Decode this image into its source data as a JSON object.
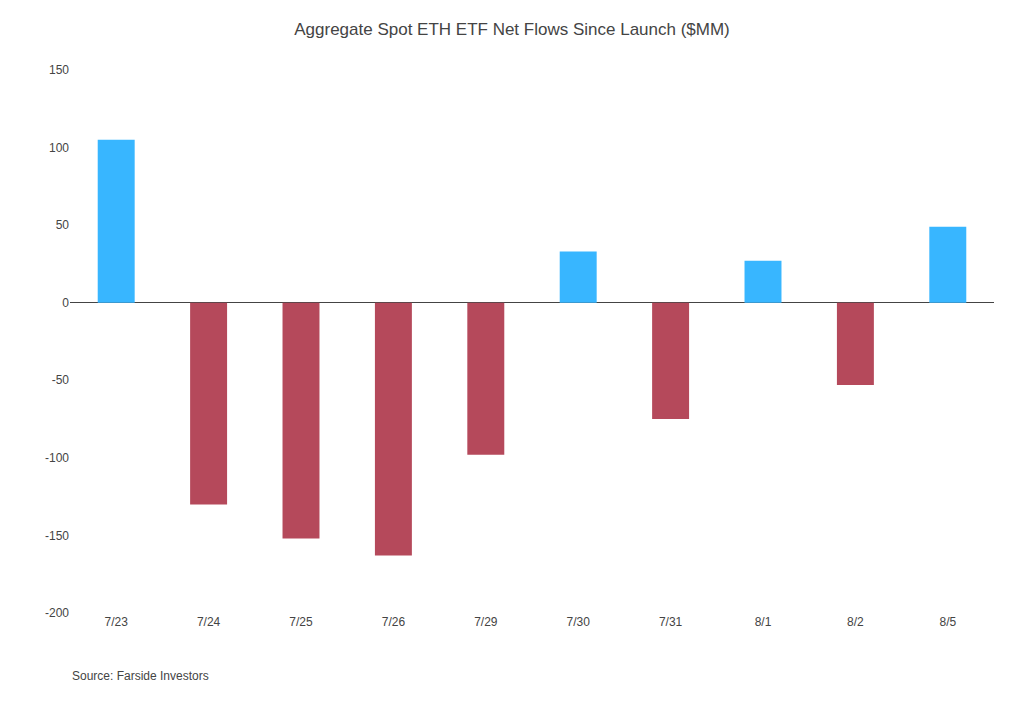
{
  "chart_data": {
    "type": "bar",
    "title": "Aggregate Spot ETH ETF Net Flows Since Launch ($MM)",
    "categories": [
      "7/23",
      "7/24",
      "7/25",
      "7/26",
      "7/29",
      "7/30",
      "7/31",
      "8/1",
      "8/2",
      "8/5"
    ],
    "values": [
      105,
      -130,
      -152,
      -163,
      -98,
      33,
      -75,
      27,
      -53,
      49
    ],
    "colors": [
      "#38b6ff",
      "#b5495b",
      "#b5495b",
      "#b5495b",
      "#b5495b",
      "#38b6ff",
      "#b5495b",
      "#38b6ff",
      "#b5495b",
      "#38b6ff"
    ],
    "ylim": [
      -200,
      150
    ],
    "yticks": [
      -200,
      -150,
      -100,
      -50,
      0,
      50,
      100,
      150
    ],
    "grid": false,
    "annotations": [
      "Source: Farside Investors"
    ]
  }
}
